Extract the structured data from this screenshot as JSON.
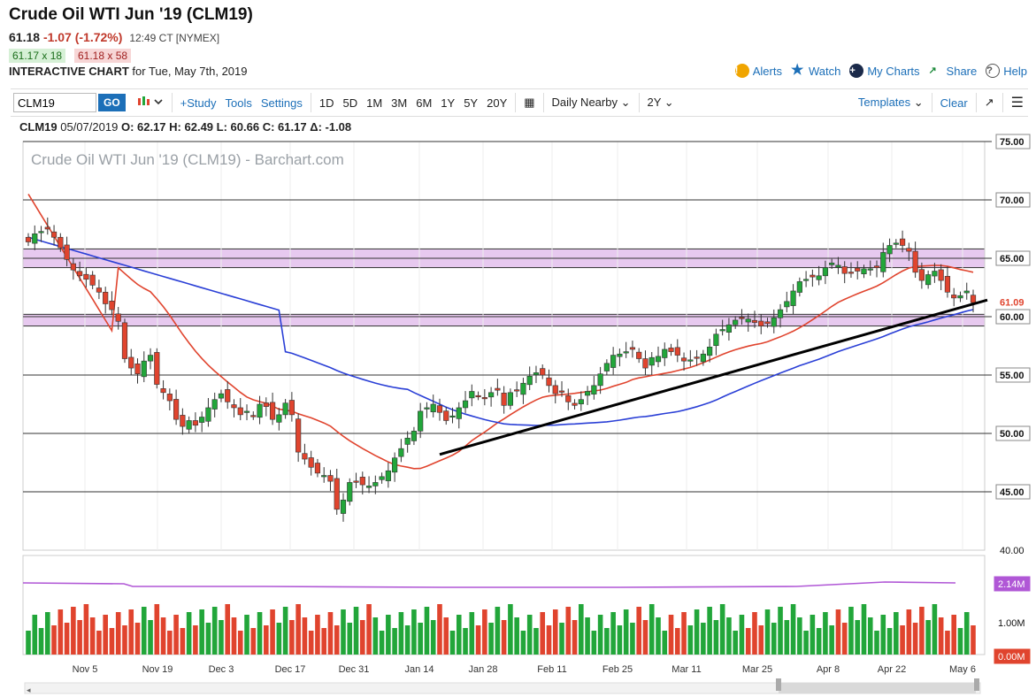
{
  "header": {
    "title": "Crude Oil WTI Jun '19 (CLM19)",
    "last": "61.18",
    "change": "-1.07 (-1.72%)",
    "time": "12:49 CT [NYMEX]",
    "bid": "61.17 x 18",
    "ask": "61.18 x 58",
    "interactive_label": "INTERACTIVE CHART",
    "interactive_date": "for Tue, May 7th, 2019"
  },
  "top_links": {
    "alerts": "Alerts",
    "watch": "Watch",
    "my_charts": "My Charts",
    "share": "Share",
    "help": "Help"
  },
  "toolbar": {
    "symbol_value": "CLM19",
    "go": "GO",
    "study": "+Study",
    "tools": "Tools",
    "settings": "Settings",
    "ranges": [
      "1D",
      "5D",
      "1M",
      "3M",
      "6M",
      "1Y",
      "5Y",
      "20Y"
    ],
    "period": "Daily Nearby",
    "span": "2Y",
    "templates": "Templates",
    "clear": "Clear"
  },
  "ohlc": {
    "symbol": "CLM19",
    "date": "05/07/2019",
    "o": "O: 62.17",
    "h": "H: 62.49",
    "l": "L: 60.66",
    "c": "C: 61.17",
    "d": "Δ: -1.08"
  },
  "colors": {
    "up": "#22a63a",
    "down": "#e0442e",
    "ma_fast": "#e0442e",
    "ma_slow": "#2a3fd6",
    "band": "#e7c9ef",
    "volume_ma": "#b057d6"
  },
  "chart_data": {
    "type": "candlestick",
    "title": "Crude Oil WTI Jun '19 (CLM19) - Barchart.com",
    "price_axis": {
      "min": 40,
      "max": 75,
      "ticks": [
        "75.00",
        "70.00",
        "65.00",
        "60.00",
        "55.00",
        "50.00",
        "45.00",
        "40.00"
      ],
      "last_label": "61.09"
    },
    "x_ticks": [
      "Nov 5",
      "Nov 19",
      "Dec 3",
      "Dec 17",
      "Dec 31",
      "Jan 14",
      "Jan 28",
      "Feb 11",
      "Feb 25",
      "Mar 11",
      "Mar 25",
      "Apr 8",
      "Apr 22",
      "May 6"
    ],
    "support_zones": [
      [
        64.2,
        65.8
      ],
      [
        59.2,
        60.2
      ]
    ],
    "trendline": {
      "from": {
        "day": 64,
        "value": 48.2
      },
      "to": {
        "day": 178,
        "value": 61.2
      }
    },
    "closes": [
      66.4,
      67.1,
      67.3,
      67.5,
      66.8,
      65.9,
      64.9,
      64.0,
      63.5,
      63.2,
      62.7,
      62.1,
      61.1,
      60.6,
      59.6,
      56.4,
      55.6,
      55.1,
      56.2,
      56.7,
      54.2,
      53.5,
      52.8,
      51.2,
      50.6,
      51.1,
      50.7,
      51.4,
      52.2,
      52.9,
      53.4,
      52.7,
      52.2,
      51.6,
      51.9,
      51.5,
      52.5,
      52.3,
      51.2,
      51.6,
      52.6,
      51.6,
      48.4,
      47.8,
      47.1,
      46.6,
      46.4,
      45.9,
      43.5,
      44.3,
      45.8,
      45.9,
      45.6,
      45.5,
      45.8,
      46.3,
      46.8,
      47.9,
      48.7,
      49.6,
      50.2,
      51.9,
      52.2,
      52.5,
      51.8,
      51.1,
      51.5,
      52.2,
      52.8,
      53.6,
      53.2,
      53.0,
      53.5,
      53.7,
      52.4,
      53.5,
      53.7,
      54.3,
      54.9,
      55.2,
      55.0,
      54.1,
      53.4,
      53.6,
      52.7,
      52.4,
      52.9,
      53.6,
      54.1,
      55.1,
      56.0,
      56.7,
      56.8,
      57.0,
      57.2,
      56.4,
      55.6,
      56.5,
      56.6,
      57.2,
      57.0,
      56.7,
      56.2,
      56.3,
      56.5,
      56.8,
      57.4,
      58.5,
      58.9,
      59.3,
      59.7,
      59.9,
      59.8,
      59.5,
      59.2,
      59.4,
      59.9,
      60.6,
      61.3,
      62.2,
      63.0,
      63.2,
      63.4,
      63.5,
      64.2,
      64.6,
      64.4,
      63.7,
      63.8,
      63.9,
      64.1,
      64.1,
      64.2,
      65.5,
      66.1,
      66.3,
      66.1,
      65.6,
      63.8,
      63.1,
      63.6,
      63.9,
      63.1,
      62.1,
      61.6,
      61.8,
      62.2,
      61.2
    ],
    "volume": {
      "max": "2.14M",
      "mid": "1.00M",
      "min": "0.00M"
    }
  }
}
